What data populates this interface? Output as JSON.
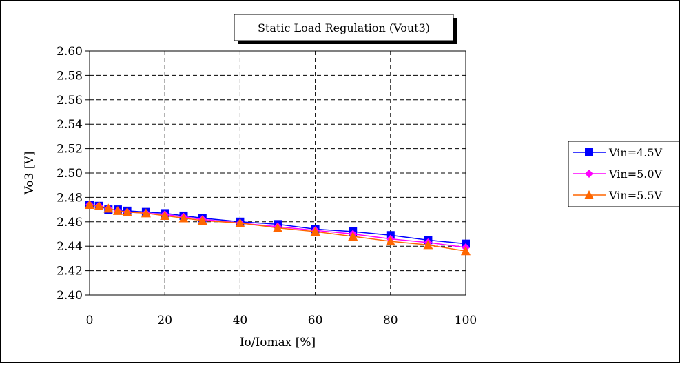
{
  "chart_data": {
    "type": "line",
    "title": "Static Load Regulation (Vout3)",
    "xlabel": "Io/Iomax [%]",
    "ylabel": "Vo3 [V]",
    "xlim": [
      0,
      100
    ],
    "ylim": [
      2.4,
      2.6
    ],
    "x_ticks": [
      0,
      20,
      40,
      60,
      80,
      100
    ],
    "y_ticks": [
      2.4,
      2.42,
      2.44,
      2.46,
      2.48,
      2.5,
      2.52,
      2.54,
      2.56,
      2.58,
      2.6
    ],
    "grid": true,
    "legend_position": "right",
    "x": [
      0,
      2.5,
      5,
      7.5,
      10,
      15,
      20,
      25,
      30,
      40,
      50,
      60,
      70,
      80,
      90,
      100
    ],
    "series": [
      {
        "name": "Vin=4.5V",
        "color": "#0000ff",
        "marker": "square",
        "values": [
          2.474,
          2.473,
          2.47,
          2.47,
          2.469,
          2.468,
          2.467,
          2.465,
          2.463,
          2.46,
          2.458,
          2.454,
          2.452,
          2.449,
          2.445,
          2.442
        ]
      },
      {
        "name": "Vin=5.0V",
        "color": "#ff00ff",
        "marker": "diamond",
        "values": [
          2.474,
          2.473,
          2.471,
          2.469,
          2.468,
          2.467,
          2.466,
          2.464,
          2.462,
          2.459,
          2.456,
          2.453,
          2.45,
          2.446,
          2.443,
          2.439
        ]
      },
      {
        "name": "Vin=5.5V",
        "color": "#ff6600",
        "marker": "triangle",
        "values": [
          2.474,
          2.473,
          2.471,
          2.469,
          2.468,
          2.467,
          2.465,
          2.463,
          2.461,
          2.459,
          2.455,
          2.452,
          2.448,
          2.444,
          2.441,
          2.436
        ]
      }
    ]
  }
}
